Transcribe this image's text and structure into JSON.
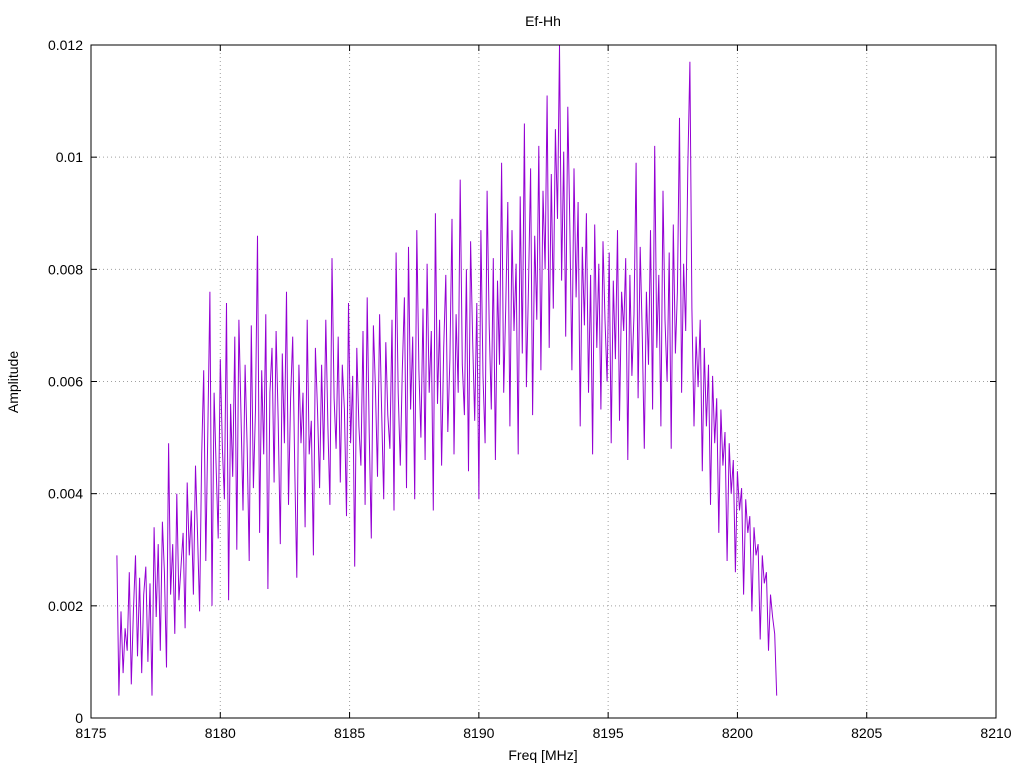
{
  "chart_data": {
    "type": "line",
    "title": "Ef-Hh",
    "xlabel": "Freq [MHz]",
    "ylabel": "Amplitude",
    "xlim": [
      8175,
      8210
    ],
    "ylim": [
      0,
      0.012
    ],
    "x_ticks": [
      8175,
      8180,
      8185,
      8190,
      8195,
      8200,
      8205,
      8210
    ],
    "x_tick_labels": [
      "8175",
      "8180",
      "8185",
      "8190",
      "8195",
      "8200",
      "8205",
      "8210"
    ],
    "y_ticks": [
      0,
      0.002,
      0.004,
      0.006,
      0.008,
      0.01,
      0.012
    ],
    "y_tick_labels": [
      "0",
      "0.002",
      "0.004",
      "0.006",
      "0.008",
      "0.01",
      "0.012"
    ],
    "grid": true,
    "series": [
      {
        "color": "#9400d3",
        "x_start": 8176.0,
        "x_step": 0.08,
        "values": [
          0.0029,
          0.0004,
          0.0019,
          0.0008,
          0.0016,
          0.0012,
          0.0026,
          0.0006,
          0.0019,
          0.0029,
          0.0011,
          0.0025,
          0.0008,
          0.0022,
          0.0027,
          0.001,
          0.0024,
          0.0004,
          0.0034,
          0.0018,
          0.0031,
          0.0012,
          0.0035,
          0.0026,
          0.0009,
          0.0049,
          0.0022,
          0.0031,
          0.0015,
          0.004,
          0.0021,
          0.0027,
          0.0033,
          0.0016,
          0.0042,
          0.0029,
          0.0037,
          0.0022,
          0.0045,
          0.0033,
          0.0019,
          0.0047,
          0.0062,
          0.0028,
          0.0052,
          0.0076,
          0.002,
          0.0058,
          0.0045,
          0.0032,
          0.0064,
          0.0048,
          0.0039,
          0.0074,
          0.0021,
          0.0056,
          0.0043,
          0.0068,
          0.003,
          0.0071,
          0.0054,
          0.0037,
          0.0063,
          0.0048,
          0.0028,
          0.007,
          0.0041,
          0.0055,
          0.0086,
          0.0033,
          0.0062,
          0.0047,
          0.0072,
          0.0023,
          0.0058,
          0.0066,
          0.0042,
          0.0069,
          0.0053,
          0.0031,
          0.0065,
          0.0049,
          0.0076,
          0.0038,
          0.0057,
          0.0068,
          0.0044,
          0.0025,
          0.0063,
          0.0049,
          0.0058,
          0.0034,
          0.0071,
          0.0047,
          0.0053,
          0.0029,
          0.0066,
          0.0055,
          0.0041,
          0.0063,
          0.0046,
          0.0071,
          0.0052,
          0.0038,
          0.0082,
          0.0057,
          0.0048,
          0.0068,
          0.0042,
          0.0063,
          0.0055,
          0.0036,
          0.0074,
          0.0049,
          0.0061,
          0.0027,
          0.0066,
          0.0052,
          0.0045,
          0.0069,
          0.0038,
          0.0075,
          0.0051,
          0.0032,
          0.007,
          0.0059,
          0.0043,
          0.0072,
          0.0055,
          0.0039,
          0.0067,
          0.0054,
          0.0048,
          0.0071,
          0.0037,
          0.0083,
          0.0058,
          0.0045,
          0.0062,
          0.0075,
          0.0041,
          0.0084,
          0.0055,
          0.0068,
          0.0039,
          0.0087,
          0.0062,
          0.005,
          0.0073,
          0.0046,
          0.0081,
          0.0058,
          0.0069,
          0.0037,
          0.009,
          0.0056,
          0.0071,
          0.0045,
          0.0066,
          0.0079,
          0.0051,
          0.0064,
          0.0089,
          0.0047,
          0.0072,
          0.0058,
          0.0096,
          0.0063,
          0.0054,
          0.008,
          0.0044,
          0.0085,
          0.0067,
          0.0053,
          0.0074,
          0.0039,
          0.0087,
          0.0061,
          0.0049,
          0.0094,
          0.007,
          0.0055,
          0.0082,
          0.0046,
          0.0078,
          0.0063,
          0.0099,
          0.0058,
          0.0073,
          0.0092,
          0.0052,
          0.0087,
          0.0069,
          0.0081,
          0.0047,
          0.0093,
          0.0065,
          0.0106,
          0.0059,
          0.0077,
          0.0098,
          0.0054,
          0.0086,
          0.0071,
          0.0102,
          0.0062,
          0.0094,
          0.008,
          0.0111,
          0.0066,
          0.0097,
          0.0073,
          0.0105,
          0.0089,
          0.012,
          0.0078,
          0.0101,
          0.0068,
          0.0109,
          0.0087,
          0.0062,
          0.0098,
          0.0075,
          0.0092,
          0.0052,
          0.0084,
          0.007,
          0.009,
          0.0058,
          0.0079,
          0.0047,
          0.0088,
          0.0066,
          0.0081,
          0.0055,
          0.0085,
          0.0071,
          0.006,
          0.0083,
          0.0049,
          0.0078,
          0.0064,
          0.0087,
          0.0053,
          0.0076,
          0.0069,
          0.0082,
          0.0046,
          0.0079,
          0.0061,
          0.0072,
          0.0099,
          0.0057,
          0.0084,
          0.0068,
          0.0048,
          0.0076,
          0.0063,
          0.0087,
          0.0055,
          0.0102,
          0.0066,
          0.0079,
          0.0052,
          0.0094,
          0.0071,
          0.006,
          0.0083,
          0.0048,
          0.0088,
          0.0065,
          0.0076,
          0.0107,
          0.0058,
          0.0081,
          0.0069,
          0.0098,
          0.0117,
          0.0073,
          0.0052,
          0.0068,
          0.0059,
          0.0071,
          0.0044,
          0.0066,
          0.0052,
          0.0063,
          0.0038,
          0.0061,
          0.0049,
          0.0057,
          0.0033,
          0.0055,
          0.0045,
          0.0051,
          0.0028,
          0.0049,
          0.004,
          0.0046,
          0.0026,
          0.0044,
          0.0037,
          0.0041,
          0.0022,
          0.0039,
          0.0033,
          0.0036,
          0.0019,
          0.0034,
          0.0029,
          0.0031,
          0.0014,
          0.0029,
          0.0024,
          0.0026,
          0.0012,
          0.0022,
          0.0018,
          0.0015,
          0.0004
        ]
      }
    ]
  }
}
